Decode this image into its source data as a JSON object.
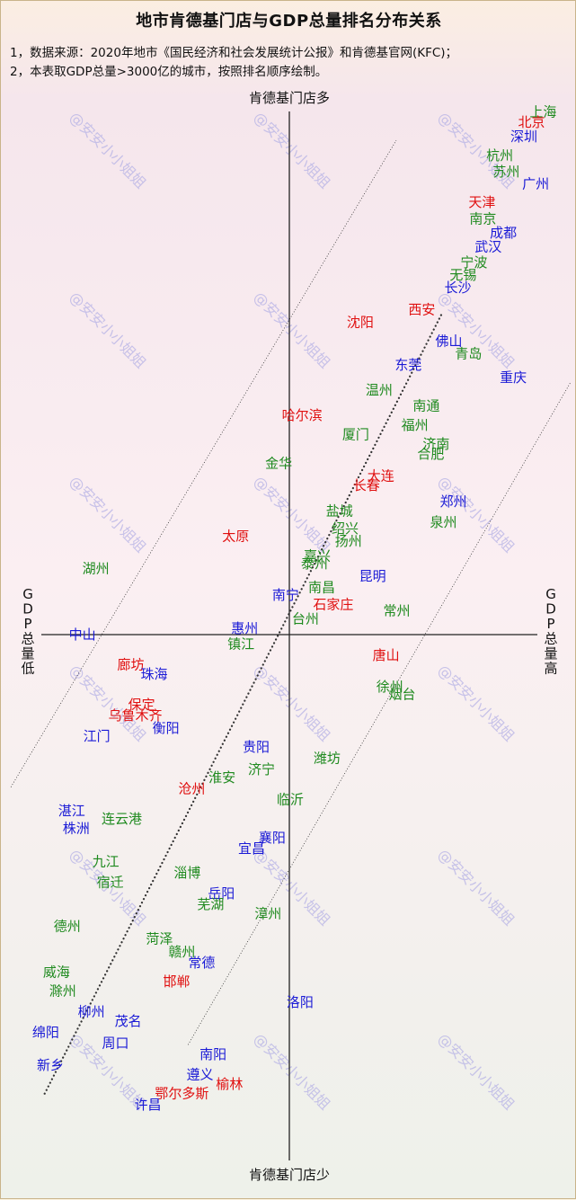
{
  "title": "地市肯德基门店与GDP总量排名分布关系",
  "notes": [
    "1，数据来源：2020年地市《国民经济和社会发展统计公报》和肯德基官网(KFC)；",
    "2，本表取GDP总量>3000亿的城市，按照排名顺序绘制。"
  ],
  "colors": {
    "red": "#e01010",
    "blue": "#1a1ad6",
    "green": "#1f8a1f",
    "axis": "#222222"
  },
  "watermark": "@安安小小姐姐",
  "chart_data": {
    "type": "scatter",
    "axes": {
      "top": "肯德基门店多",
      "bottom": "肯德基门店少",
      "left": "GDP总量低",
      "right": "GDP总量高"
    },
    "x_range": [
      -100,
      100
    ],
    "y_range": [
      -100,
      100
    ],
    "points": [
      {
        "label": "上海",
        "color": "green",
        "x": 90.2,
        "y": 99.4
      },
      {
        "label": "北京",
        "color": "red",
        "x": 86.1,
        "y": 97.4
      },
      {
        "label": "深圳",
        "color": "blue",
        "x": 83.4,
        "y": 94.7
      },
      {
        "label": "杭州",
        "color": "green",
        "x": 74.8,
        "y": 91.1
      },
      {
        "label": "苏州",
        "color": "green",
        "x": 77.1,
        "y": 88.0
      },
      {
        "label": "广州",
        "color": "blue",
        "x": 87.6,
        "y": 85.7
      },
      {
        "label": "天津",
        "color": "red",
        "x": 68.5,
        "y": 82.2
      },
      {
        "label": "南京",
        "color": "green",
        "x": 68.8,
        "y": 79.1
      },
      {
        "label": "成都",
        "color": "blue",
        "x": 76.1,
        "y": 76.4
      },
      {
        "label": "武汉",
        "color": "blue",
        "x": 70.7,
        "y": 73.8
      },
      {
        "label": "宁波",
        "color": "green",
        "x": 65.6,
        "y": 70.8
      },
      {
        "label": "无锡",
        "color": "green",
        "x": 61.8,
        "y": 68.4
      },
      {
        "label": "长沙",
        "color": "blue",
        "x": 59.9,
        "y": 66.0
      },
      {
        "label": "西安",
        "color": "red",
        "x": 47.1,
        "y": 61.8
      },
      {
        "label": "沈阳",
        "color": "red",
        "x": 25.2,
        "y": 59.4
      },
      {
        "label": "佛山",
        "color": "blue",
        "x": 56.7,
        "y": 55.8
      },
      {
        "label": "青岛",
        "color": "green",
        "x": 63.7,
        "y": 53.4
      },
      {
        "label": "东莞",
        "color": "blue",
        "x": 42.3,
        "y": 51.3
      },
      {
        "label": "重庆",
        "color": "blue",
        "x": 79.6,
        "y": 48.9
      },
      {
        "label": "温州",
        "color": "green",
        "x": 31.9,
        "y": 46.5
      },
      {
        "label": "南通",
        "color": "green",
        "x": 48.7,
        "y": 43.5
      },
      {
        "label": "哈尔滨",
        "color": "red",
        "x": 4.5,
        "y": 41.7
      },
      {
        "label": "福州",
        "color": "green",
        "x": 44.6,
        "y": 39.8
      },
      {
        "label": "厦门",
        "color": "green",
        "x": 23.6,
        "y": 38.0
      },
      {
        "label": "济南",
        "color": "green",
        "x": 52.2,
        "y": 36.2
      },
      {
        "label": "合肥",
        "color": "green",
        "x": 50.3,
        "y": 34.4
      },
      {
        "label": "金华",
        "color": "green",
        "x": -3.8,
        "y": 32.6
      },
      {
        "label": "大连",
        "color": "red",
        "x": 32.5,
        "y": 30.2
      },
      {
        "label": "长春",
        "color": "red",
        "x": 27.4,
        "y": 28.4
      },
      {
        "label": "郑州",
        "color": "blue",
        "x": 58.3,
        "y": 25.3
      },
      {
        "label": "盐城",
        "color": "green",
        "x": 17.8,
        "y": 23.5
      },
      {
        "label": "泉州",
        "color": "green",
        "x": 54.8,
        "y": 21.4
      },
      {
        "label": "绍兴",
        "color": "green",
        "x": 19.8,
        "y": 20.2
      },
      {
        "label": "太原",
        "color": "red",
        "x": -19.1,
        "y": 18.7
      },
      {
        "label": "扬州",
        "color": "green",
        "x": 21.0,
        "y": 17.8
      },
      {
        "label": "嘉兴",
        "color": "green",
        "x": 9.9,
        "y": 15.0
      },
      {
        "label": "泰州",
        "color": "green",
        "x": 8.9,
        "y": 13.5
      },
      {
        "label": "湖州",
        "color": "green",
        "x": -68.8,
        "y": 12.6
      },
      {
        "label": "昆明",
        "color": "blue",
        "x": 29.6,
        "y": 11.1
      },
      {
        "label": "南昌",
        "color": "green",
        "x": 11.5,
        "y": 9.0
      },
      {
        "label": "南宁",
        "color": "blue",
        "x": -1.3,
        "y": 7.5
      },
      {
        "label": "石家庄",
        "color": "red",
        "x": 15.6,
        "y": 5.7
      },
      {
        "label": "常州",
        "color": "green",
        "x": 38.2,
        "y": 4.5
      },
      {
        "label": "台州",
        "color": "green",
        "x": 5.7,
        "y": 3.0
      },
      {
        "label": "惠州",
        "color": "blue",
        "x": -15.9,
        "y": 1.2
      },
      {
        "label": "中山",
        "color": "blue",
        "x": -73.6,
        "y": -0.0
      },
      {
        "label": "镇江",
        "color": "green",
        "x": -17.2,
        "y": -1.8
      },
      {
        "label": "唐山",
        "color": "red",
        "x": 34.4,
        "y": -3.9
      },
      {
        "label": "廊坊",
        "color": "red",
        "x": -56.4,
        "y": -5.7
      },
      {
        "label": "珠海",
        "color": "blue",
        "x": -48.1,
        "y": -7.5
      },
      {
        "label": "徐州",
        "color": "green",
        "x": 35.7,
        "y": -9.9
      },
      {
        "label": "烟台",
        "color": "green",
        "x": 40.1,
        "y": -11.4
      },
      {
        "label": "保定",
        "color": "red",
        "x": -52.5,
        "y": -13.3
      },
      {
        "label": "乌鲁木齐",
        "color": "red",
        "x": -54.8,
        "y": -15.4
      },
      {
        "label": "衡阳",
        "color": "blue",
        "x": -43.9,
        "y": -17.8
      },
      {
        "label": "江门",
        "color": "blue",
        "x": -68.5,
        "y": -19.3
      },
      {
        "label": "贵阳",
        "color": "blue",
        "x": -11.8,
        "y": -21.4
      },
      {
        "label": "潍坊",
        "color": "green",
        "x": 13.4,
        "y": -23.5
      },
      {
        "label": "济宁",
        "color": "green",
        "x": -9.9,
        "y": -25.6
      },
      {
        "label": "淮安",
        "color": "green",
        "x": -23.9,
        "y": -27.2
      },
      {
        "label": "沧州",
        "color": "red",
        "x": -34.7,
        "y": -29.3
      },
      {
        "label": "临沂",
        "color": "green",
        "x": 0.3,
        "y": -31.4
      },
      {
        "label": "湛江",
        "color": "blue",
        "x": -77.4,
        "y": -33.5
      },
      {
        "label": "连云港",
        "color": "green",
        "x": -59.6,
        "y": -35.0
      },
      {
        "label": "株洲",
        "color": "blue",
        "x": -75.8,
        "y": -36.8
      },
      {
        "label": "襄阳",
        "color": "blue",
        "x": -6.1,
        "y": -38.6
      },
      {
        "label": "宜昌",
        "color": "blue",
        "x": -13.4,
        "y": -40.7
      },
      {
        "label": "九江",
        "color": "green",
        "x": -65.3,
        "y": -43.2
      },
      {
        "label": "淄博",
        "color": "green",
        "x": -36.3,
        "y": -45.3
      },
      {
        "label": "宿迁",
        "color": "green",
        "x": -63.7,
        "y": -47.1
      },
      {
        "label": "岳阳",
        "color": "blue",
        "x": -24.2,
        "y": -49.2
      },
      {
        "label": "芜湖",
        "color": "green",
        "x": -28.0,
        "y": -51.3
      },
      {
        "label": "漳州",
        "color": "green",
        "x": -7.6,
        "y": -53.1
      },
      {
        "label": "德州",
        "color": "green",
        "x": -79.0,
        "y": -55.5
      },
      {
        "label": "菏泽",
        "color": "green",
        "x": -46.2,
        "y": -57.9
      },
      {
        "label": "赣州",
        "color": "green",
        "x": -38.2,
        "y": -60.3
      },
      {
        "label": "常德",
        "color": "blue",
        "x": -31.2,
        "y": -62.4
      },
      {
        "label": "威海",
        "color": "green",
        "x": -82.8,
        "y": -64.2
      },
      {
        "label": "邯郸",
        "color": "red",
        "x": -40.1,
        "y": -66.0
      },
      {
        "label": "滁州",
        "color": "green",
        "x": -80.6,
        "y": -67.8
      },
      {
        "label": "洛阳",
        "color": "blue",
        "x": 3.8,
        "y": -69.9
      },
      {
        "label": "柳州",
        "color": "blue",
        "x": -70.4,
        "y": -71.7
      },
      {
        "label": "茂名",
        "color": "blue",
        "x": -57.3,
        "y": -73.5
      },
      {
        "label": "绵阳",
        "color": "blue",
        "x": -86.6,
        "y": -75.6
      },
      {
        "label": "周口",
        "color": "blue",
        "x": -61.8,
        "y": -77.7
      },
      {
        "label": "南阳",
        "color": "blue",
        "x": -27.1,
        "y": -79.8
      },
      {
        "label": "新乡",
        "color": "blue",
        "x": -85.0,
        "y": -81.9
      },
      {
        "label": "遵义",
        "color": "blue",
        "x": -31.8,
        "y": -83.7
      },
      {
        "label": "榆林",
        "color": "red",
        "x": -21.3,
        "y": -85.5
      },
      {
        "label": "鄂尔多斯",
        "color": "red",
        "x": -38.2,
        "y": -87.3
      },
      {
        "label": "许昌",
        "color": "blue",
        "x": -50.3,
        "y": -89.4
      }
    ],
    "guide_lines": [
      {
        "style": "dotted",
        "from": [
          -87,
          -87.3
        ],
        "to": [
          54,
          60.8
        ]
      },
      {
        "style": "thin",
        "from": [
          -99,
          -29
        ],
        "to": [
          38,
          94
        ]
      },
      {
        "style": "thin",
        "from": [
          -36,
          -78
        ],
        "to": [
          100,
          48
        ]
      }
    ]
  }
}
